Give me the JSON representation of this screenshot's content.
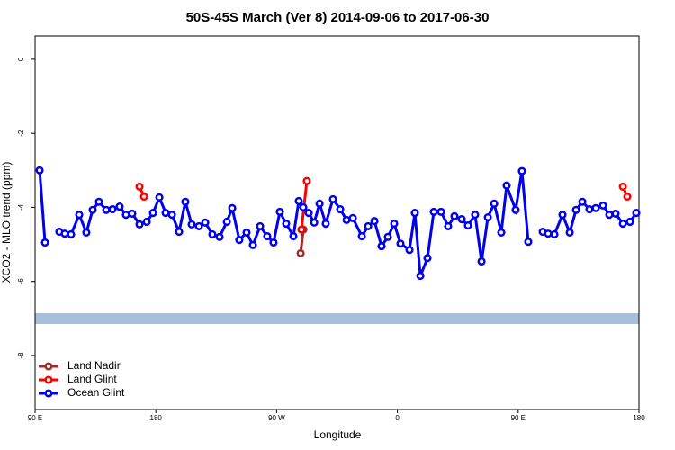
{
  "chart_data": {
    "type": "line",
    "title": "50S-45S March (Ver 8)   2014-09-06 to 2017-06-30",
    "x_label": "Longitude",
    "y_label": "XCO2 - MLO trend (ppm)",
    "xlim": [
      90,
      540
    ],
    "ylim": [
      -9.46,
      0.63
    ],
    "xticks": [
      {
        "value": 90,
        "label": "90 E"
      },
      180,
      {
        "value": 270,
        "label": "90 W"
      },
      {
        "value": 360,
        "label": "0"
      },
      {
        "value": 450,
        "label": "90 E"
      },
      {
        "value": 540,
        "label": "180"
      }
    ],
    "yticks": [
      0,
      -2,
      -4,
      -6,
      -8
    ],
    "legend": "bottom-left",
    "series": [
      {
        "name": "Land Nadir",
        "color": "#a52a2a",
        "x": [
          287.9,
          289.9
        ],
        "values": [
          -5.24,
          -4.6
        ]
      },
      {
        "name": "Land Glint",
        "color": "#ff0000",
        "x": [
          167.8,
          171.2,
          230,
          288.5,
          292.5,
          400,
          528,
          531.3
        ],
        "values": [
          -3.44,
          -3.71,
          null,
          -4.6,
          -3.29,
          null,
          -3.44,
          -3.71
        ]
      },
      {
        "name": "Ocean Glint",
        "color": "#0000ee",
        "x": [
          93.4,
          97.4,
          102,
          108.1,
          112.1,
          116.8,
          122.9,
          128.2,
          132.9,
          137.6,
          143,
          147.7,
          153,
          157.7,
          162.4,
          167.8,
          173.2,
          177.9,
          182.6,
          187.3,
          192,
          197.3,
          202,
          206.7,
          212.1,
          216.8,
          222.1,
          227.5,
          232.9,
          236.9,
          242.2,
          247.6,
          252.3,
          257.7,
          263,
          267.7,
          272.4,
          277.1,
          282.5,
          286.5,
          289.9,
          293.9,
          298,
          302,
          306.6,
          312,
          317.4,
          322.1,
          326.8,
          333.5,
          338.2,
          342.9,
          348.2,
          352.9,
          357.6,
          362.3,
          369,
          373,
          377.1,
          382.4,
          387.1,
          392.5,
          397.8,
          402.5,
          407.9,
          412.6,
          417.9,
          422.7,
          427.4,
          432.1,
          437.4,
          441.4,
          448.1,
          452.8,
          457.5,
          462,
          468.3,
          472.3,
          477,
          483,
          488.4,
          493.1,
          497.8,
          503.1,
          507.8,
          513.2,
          517.9,
          522.6,
          528,
          533.3,
          538
        ],
        "values": [
          -3.0,
          -4.95,
          null,
          -4.66,
          -4.71,
          -4.73,
          -4.2,
          -4.68,
          -4.07,
          -3.85,
          -4.07,
          -4.05,
          -3.98,
          -4.2,
          -4.17,
          -4.46,
          -4.39,
          -4.15,
          -3.73,
          -4.15,
          -4.2,
          -4.66,
          -3.85,
          -4.46,
          -4.51,
          -4.41,
          -4.73,
          -4.8,
          -4.39,
          -4.02,
          -4.88,
          -4.68,
          -5.02,
          -4.51,
          -4.78,
          -4.95,
          -4.12,
          -4.44,
          -4.78,
          -3.83,
          -4.0,
          -4.15,
          -4.41,
          -3.9,
          -4.44,
          -3.78,
          -4.05,
          -4.34,
          -4.29,
          -4.78,
          -4.51,
          -4.37,
          -5.05,
          -4.8,
          -4.44,
          -4.98,
          -5.15,
          -4.15,
          -5.85,
          -5.37,
          -4.12,
          -4.12,
          -4.51,
          -4.24,
          -4.32,
          -4.49,
          -4.2,
          -5.46,
          -4.27,
          -3.9,
          -4.68,
          -3.41,
          -4.07,
          -3.02,
          -4.93,
          null,
          -4.66,
          -4.71,
          -4.73,
          -4.2,
          -4.68,
          -4.07,
          -3.85,
          -4.05,
          -4.02,
          -3.95,
          -4.2,
          -4.17,
          -4.44,
          -4.39,
          -4.15
        ]
      }
    ]
  }
}
